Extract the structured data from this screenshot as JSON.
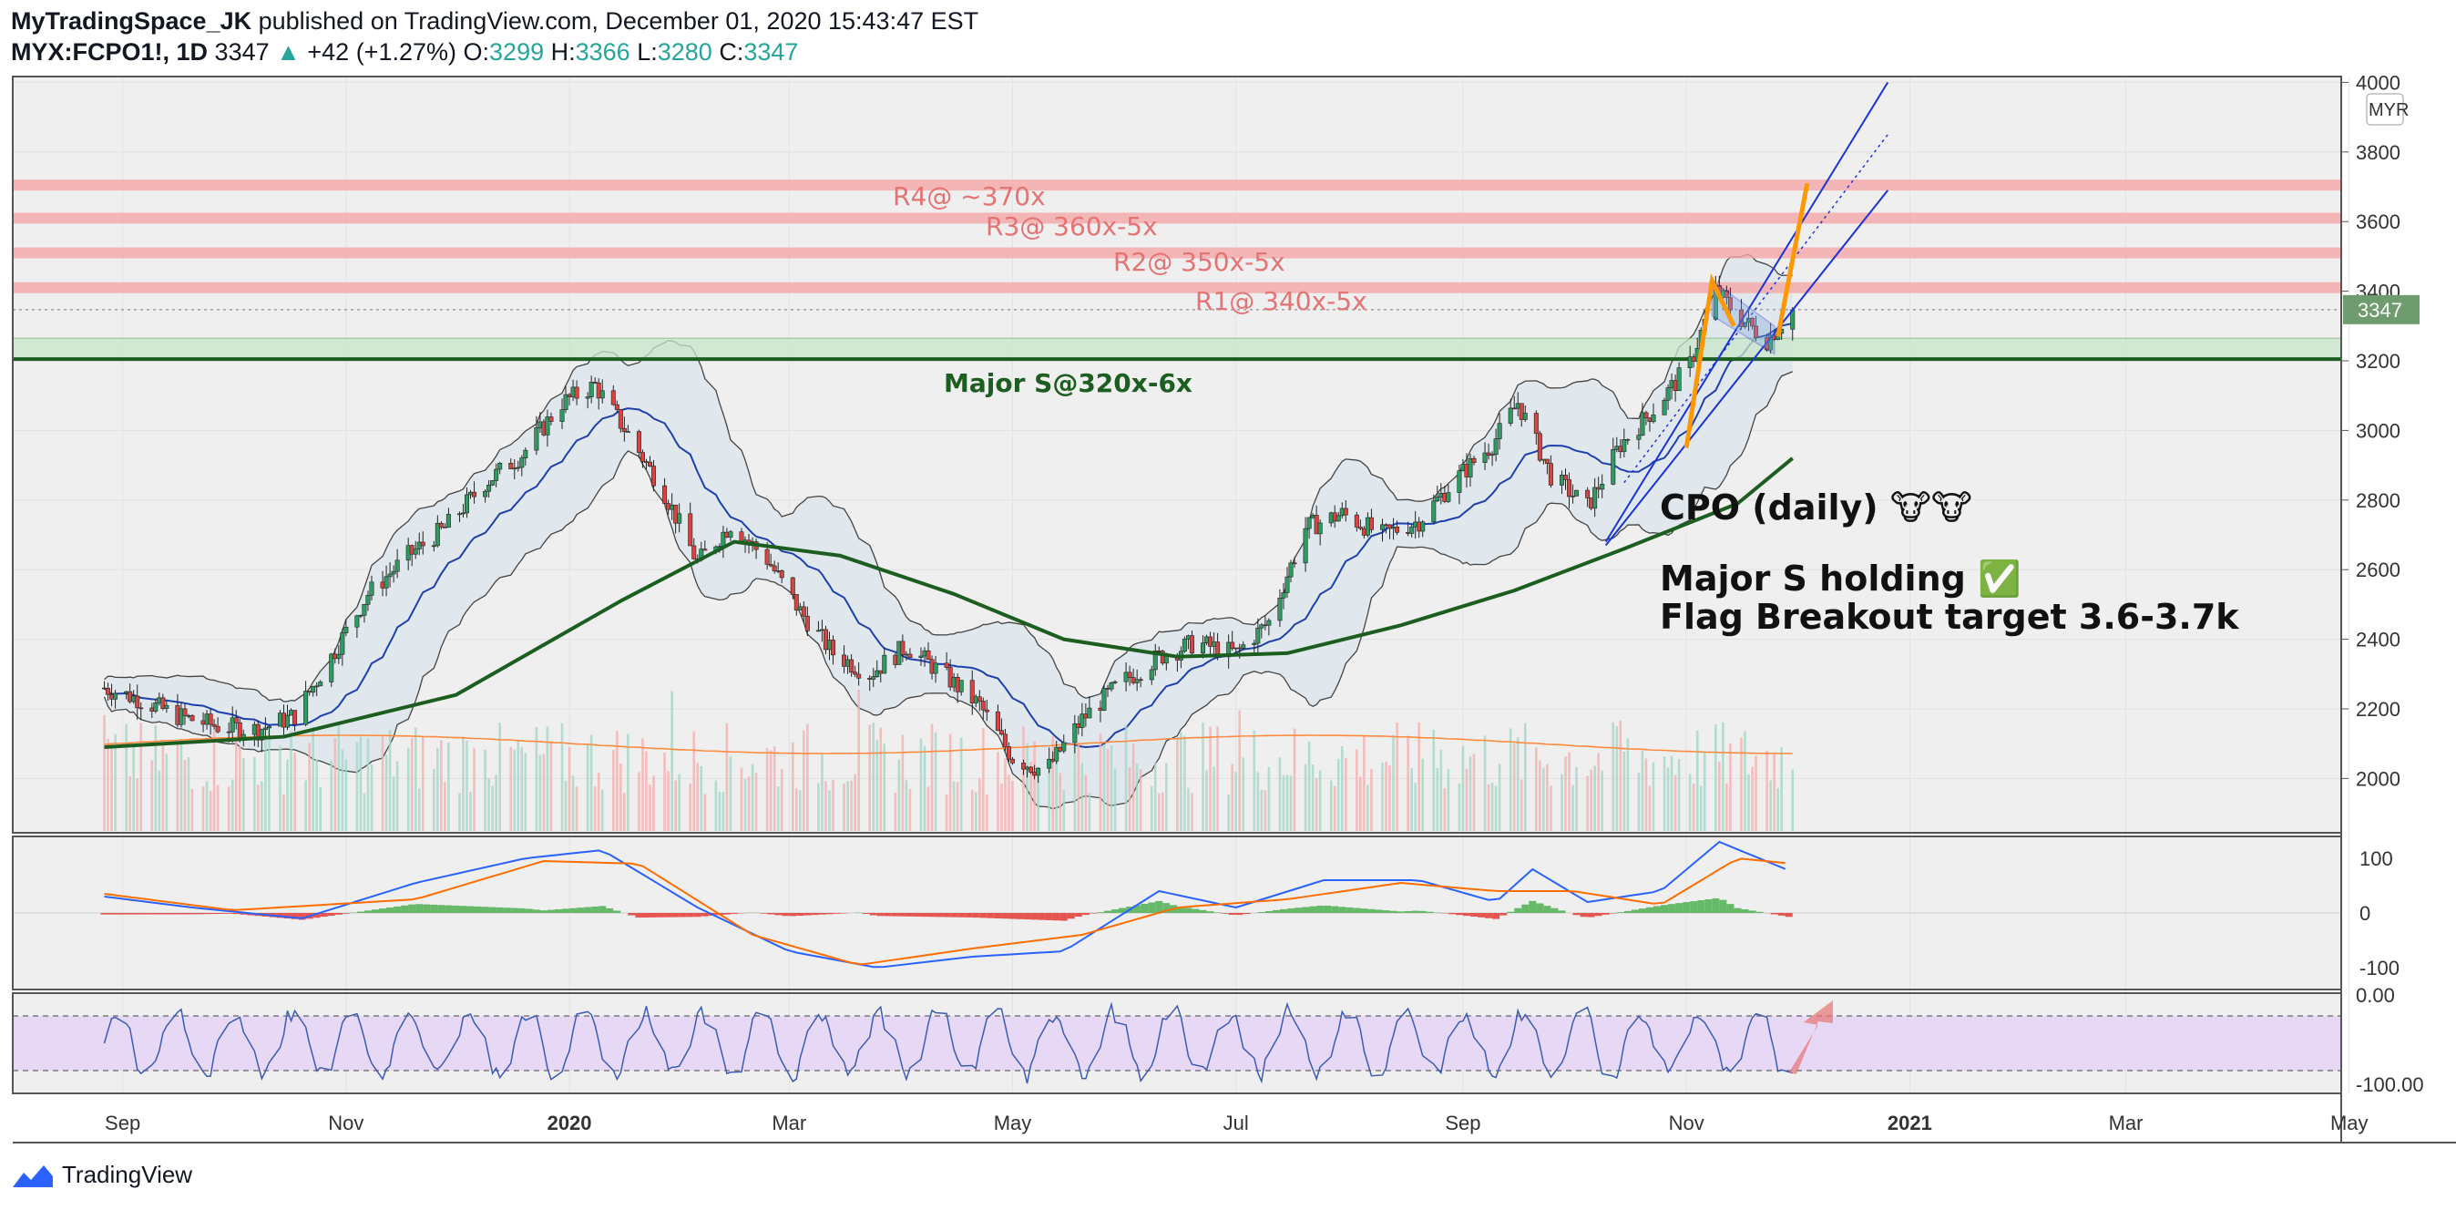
{
  "header": {
    "publisher": "MyTradingSpace_JK",
    "published_text": "published on TradingView.com, December 01, 2020 15:43:47 EST",
    "symbol": "MYX:FCPO1!, 1D",
    "last": "3347",
    "change": "+42 (+1.27%)",
    "open_label": "O:",
    "open": "3299",
    "high_label": "H:",
    "high": "3366",
    "low_label": "L:",
    "low": "3280",
    "close_label": "C:",
    "close": "3347"
  },
  "footer": {
    "brand": "TradingView"
  },
  "colors": {
    "bull": "#26a69a",
    "bear": "#ef5350",
    "bb_fill": "#dfe7ec",
    "ma_green": "#1b5e20",
    "resistance": "#f4a6a6",
    "support_zone": "#c8e6c9",
    "arrow_orange": "#ff9800",
    "rsi_band": "#e6d6f5",
    "macd_blue": "#2962ff",
    "signal_orange": "#ff6d00"
  },
  "chart_data": {
    "type": "candlestick",
    "currency": "MYR",
    "last_price_label": "3347",
    "price_axis": {
      "range": [
        1850,
        4000
      ],
      "ticks": [
        2000,
        2200,
        2400,
        2600,
        2800,
        3000,
        3200,
        3400,
        3600,
        3800,
        4000
      ]
    },
    "time_axis": {
      "labels": [
        "Sep",
        "Nov",
        "2020",
        "Mar",
        "May",
        "Jul",
        "Sep",
        "Nov",
        "2021",
        "Mar",
        "May"
      ]
    },
    "resistance_levels": [
      {
        "label": "R4@ ~370x",
        "price": 3705
      },
      {
        "label": "R3@ 360x-5x",
        "price": 3610
      },
      {
        "label": "R2@ 350x-5x",
        "price": 3510
      },
      {
        "label": "R1@ 340x-5x",
        "price": 3410
      }
    ],
    "support": {
      "label": "Major S@320x-6x",
      "price": 3205,
      "zone": [
        3205,
        3265
      ]
    },
    "annotations": [
      "CPO (daily) 🐮🐮",
      "Major S holding ✅",
      "Flag Breakout target 3.6-3.7k"
    ],
    "price_path": [
      [
        "2019-08-27",
        2260
      ],
      [
        "2019-09-05",
        2230
      ],
      [
        "2019-09-16",
        2180
      ],
      [
        "2019-09-27",
        2150
      ],
      [
        "2019-10-08",
        2140
      ],
      [
        "2019-10-18",
        2180
      ],
      [
        "2019-10-28",
        2350
      ],
      [
        "2019-11-07",
        2530
      ],
      [
        "2019-11-18",
        2640
      ],
      [
        "2019-11-28",
        2720
      ],
      [
        "2019-12-09",
        2850
      ],
      [
        "2019-12-19",
        2930
      ],
      [
        "2019-12-30",
        3080
      ],
      [
        "2020-01-08",
        3130
      ],
      [
        "2020-01-17",
        2990
      ],
      [
        "2020-01-27",
        2820
      ],
      [
        "2020-02-05",
        2620
      ],
      [
        "2020-02-14",
        2730
      ],
      [
        "2020-02-24",
        2630
      ],
      [
        "2020-03-04",
        2480
      ],
      [
        "2020-03-13",
        2360
      ],
      [
        "2020-03-23",
        2300
      ],
      [
        "2020-04-02",
        2380
      ],
      [
        "2020-04-12",
        2300
      ],
      [
        "2020-04-22",
        2210
      ],
      [
        "2020-05-01",
        2060
      ],
      [
        "2020-05-10",
        2020
      ],
      [
        "2020-05-20",
        2170
      ],
      [
        "2020-05-30",
        2270
      ],
      [
        "2020-06-10",
        2350
      ],
      [
        "2020-06-20",
        2390
      ],
      [
        "2020-07-01",
        2360
      ],
      [
        "2020-07-10",
        2450
      ],
      [
        "2020-07-20",
        2720
      ],
      [
        "2020-07-30",
        2760
      ],
      [
        "2020-08-10",
        2700
      ],
      [
        "2020-08-20",
        2740
      ],
      [
        "2020-08-30",
        2860
      ],
      [
        "2020-09-09",
        2960
      ],
      [
        "2020-09-16",
        3080
      ],
      [
        "2020-09-25",
        2870
      ],
      [
        "2020-10-05",
        2780
      ],
      [
        "2020-10-14",
        2960
      ],
      [
        "2020-10-23",
        3060
      ],
      [
        "2020-11-02",
        3190
      ],
      [
        "2020-11-09",
        3400
      ],
      [
        "2020-11-16",
        3320
      ],
      [
        "2020-11-23",
        3260
      ],
      [
        "2020-11-30",
        3347
      ]
    ],
    "sma_200": [
      [
        "2019-08-27",
        2090
      ],
      [
        "2019-10-15",
        2120
      ],
      [
        "2019-12-01",
        2240
      ],
      [
        "2020-01-15",
        2510
      ],
      [
        "2020-02-15",
        2680
      ],
      [
        "2020-03-15",
        2640
      ],
      [
        "2020-04-15",
        2530
      ],
      [
        "2020-05-15",
        2400
      ],
      [
        "2020-06-15",
        2350
      ],
      [
        "2020-07-15",
        2360
      ],
      [
        "2020-08-15",
        2440
      ],
      [
        "2020-09-15",
        2540
      ],
      [
        "2020-10-15",
        2660
      ],
      [
        "2020-11-15",
        2790
      ],
      [
        "2020-11-30",
        2920
      ]
    ],
    "macd": {
      "range": [
        -130,
        130
      ],
      "ticks": [
        100,
        0,
        -100
      ],
      "macd_line": [
        [
          "2019-08-27",
          30
        ],
        [
          "2019-09-20",
          10
        ],
        [
          "2019-10-20",
          -10
        ],
        [
          "2019-11-20",
          55
        ],
        [
          "2019-12-20",
          100
        ],
        [
          "2020-01-10",
          115
        ],
        [
          "2020-02-05",
          10
        ],
        [
          "2020-03-01",
          -70
        ],
        [
          "2020-03-25",
          -100
        ],
        [
          "2020-04-20",
          -80
        ],
        [
          "2020-05-15",
          -70
        ],
        [
          "2020-06-10",
          40
        ],
        [
          "2020-07-01",
          10
        ],
        [
          "2020-07-25",
          60
        ],
        [
          "2020-08-20",
          60
        ],
        [
          "2020-09-10",
          20
        ],
        [
          "2020-09-20",
          80
        ],
        [
          "2020-10-05",
          20
        ],
        [
          "2020-10-25",
          40
        ],
        [
          "2020-11-10",
          130
        ],
        [
          "2020-11-30",
          75
        ]
      ],
      "signal_line": [
        [
          "2019-08-27",
          35
        ],
        [
          "2019-10-01",
          5
        ],
        [
          "2019-11-20",
          25
        ],
        [
          "2019-12-25",
          95
        ],
        [
          "2020-01-20",
          90
        ],
        [
          "2020-02-20",
          -40
        ],
        [
          "2020-03-20",
          -95
        ],
        [
          "2020-04-20",
          -65
        ],
        [
          "2020-05-20",
          -40
        ],
        [
          "2020-06-15",
          10
        ],
        [
          "2020-07-15",
          25
        ],
        [
          "2020-08-15",
          55
        ],
        [
          "2020-09-10",
          40
        ],
        [
          "2020-10-01",
          40
        ],
        [
          "2020-10-25",
          15
        ],
        [
          "2020-11-15",
          100
        ],
        [
          "2020-11-30",
          90
        ]
      ]
    },
    "rsi": {
      "ticks": [
        "0.00",
        "-100.00"
      ],
      "band": [
        -20,
        -80
      ]
    }
  }
}
